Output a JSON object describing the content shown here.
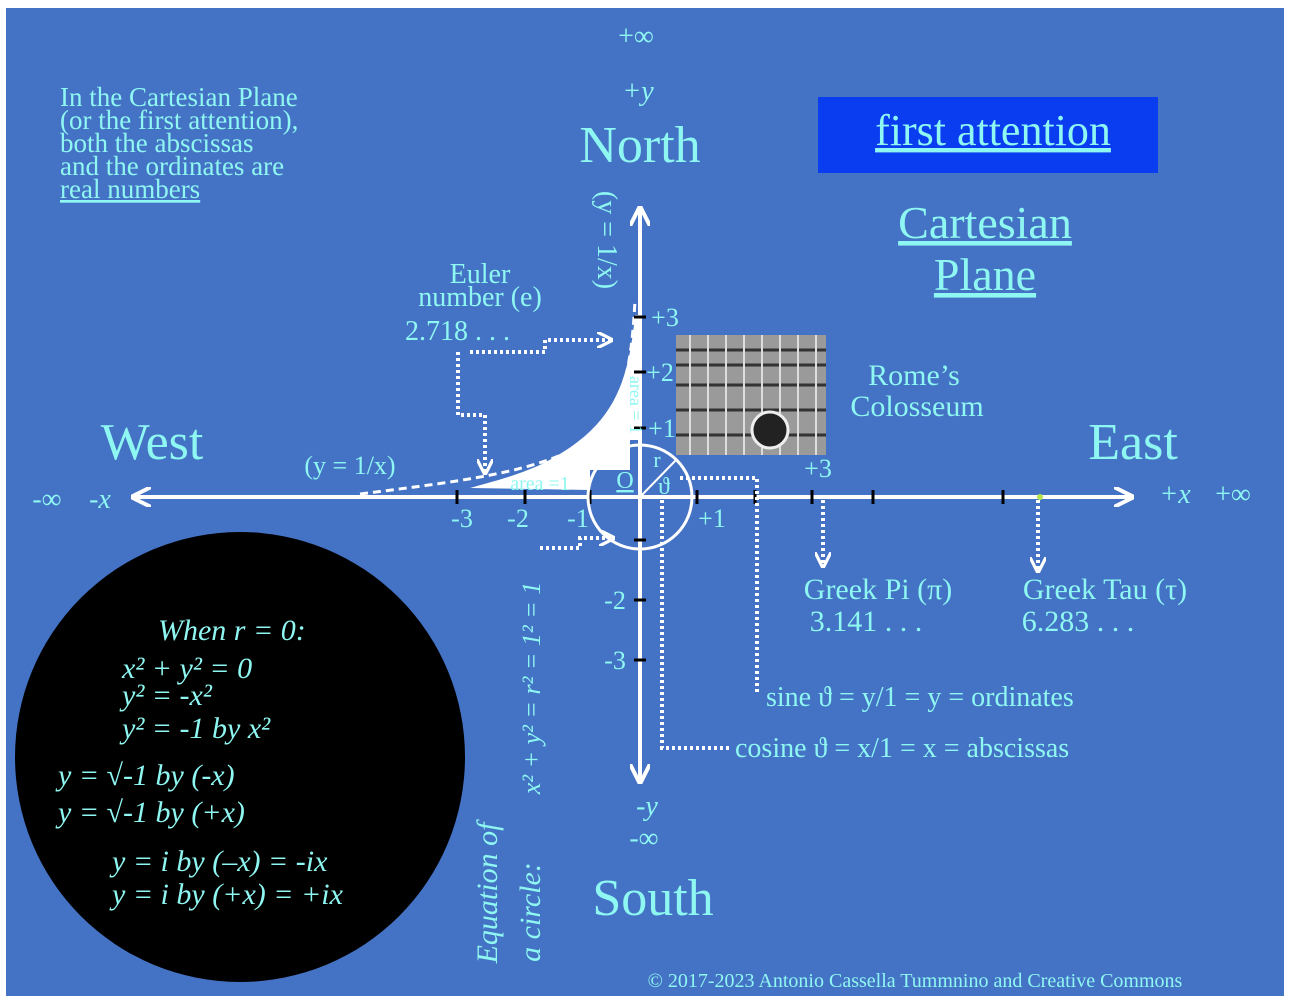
{
  "intro": [
    "In the Cartesian Plane",
    "(or the first attention),",
    "both the abscissas",
    "and the ordinates are",
    "real numbers"
  ],
  "badge": "first attention",
  "heading": [
    "Cartesian",
    "Plane"
  ],
  "directions": {
    "north": "North",
    "south": "South",
    "east": "East",
    "west": "West"
  },
  "axis_labels": {
    "plus_inf_top": "+∞",
    "plus_y": "+y",
    "minus_y": "-y",
    "minus_inf_bottom": "-∞",
    "minus_inf_left": "-∞",
    "minus_x": "-x",
    "plus_x": "+x",
    "plus_inf_right": "+∞"
  },
  "x_ticks": [
    "-3",
    "-2",
    "-1",
    "+1",
    "+3"
  ],
  "y_ticks": [
    "+3",
    "+2",
    "+1",
    "-2",
    "-3"
  ],
  "origin": "O",
  "radius": "r",
  "angle": "ϑ",
  "area_horizontal": "area =1",
  "area_vertical": "area = 1",
  "hyperbola_left": "(y = 1/x)",
  "hyperbola_top": "(y = 1/x)",
  "euler": [
    "Euler",
    "number (e)",
    "2.718 . . ."
  ],
  "colosseum": [
    "Rome’s",
    "Colosseum"
  ],
  "pi": [
    "Greek Pi (π)",
    "3.141 . . ."
  ],
  "tau": [
    "Greek Tau (τ)",
    "6.283 . . ."
  ],
  "sine": "sine ϑ = y/1 = y = ordinates",
  "cosine": "cosine ϑ = x/1 = x = abscissas",
  "circle_equation": [
    "Equation of",
    "a circle:",
    "x² + y² = r² = 1² = 1"
  ],
  "imaginary": [
    "When r = 0:",
    "x² + y²  = 0",
    "y² = -x²",
    "y² = -1 by x²",
    "y  = √-1 by (-x)",
    "y  = √-1 by (+x)",
    "y = i by  (–x) = -ix",
    "y = i by  (+x) = +ix"
  ],
  "footer": "© 2017-2023 Antonio Cassella Tummnino and Creative Commons"
}
